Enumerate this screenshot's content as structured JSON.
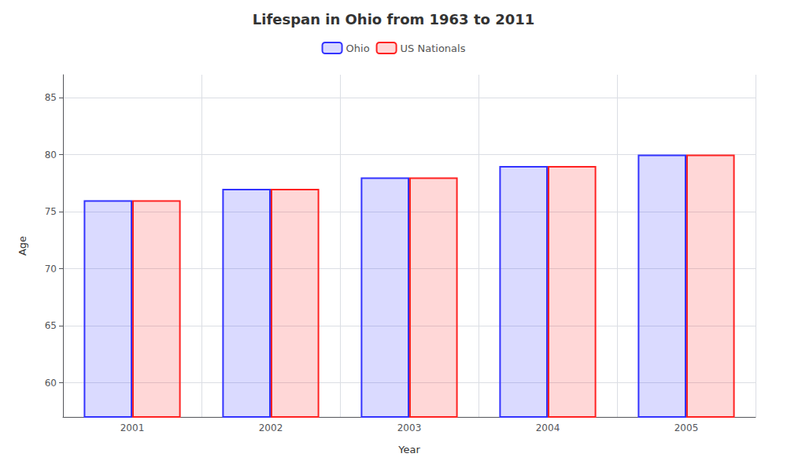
{
  "chart_data": {
    "type": "bar",
    "title": "Lifespan in Ohio from 1963 to 2011",
    "x_label": "Year",
    "y_label": "Age",
    "categories": [
      "2001",
      "2002",
      "2003",
      "2004",
      "2005"
    ],
    "series": [
      {
        "name": "Ohio",
        "color": "#3333ff",
        "values": [
          76,
          77,
          78,
          79,
          80
        ]
      },
      {
        "name": "US Nationals",
        "color": "#ff2222",
        "values": [
          76,
          77,
          78,
          79,
          80
        ]
      }
    ],
    "ylim": [
      57,
      87
    ],
    "yticks": [
      60,
      65,
      70,
      75,
      80,
      85
    ],
    "grid": true,
    "legend": "top"
  }
}
